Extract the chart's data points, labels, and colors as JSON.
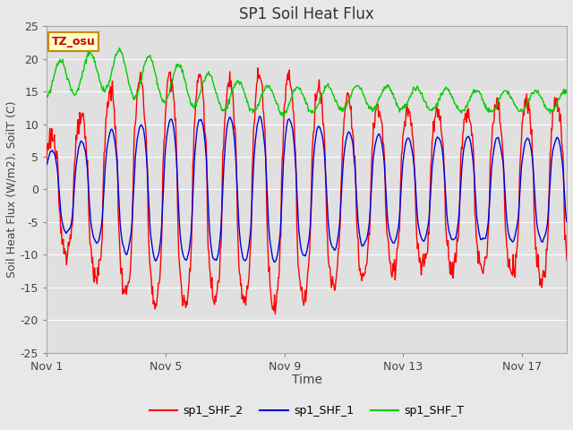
{
  "title": "SP1 Soil Heat Flux",
  "ylabel": "Soil Heat Flux (W/m2), SoilT (C)",
  "xlabel": "Time",
  "ylim": [
    -25,
    25
  ],
  "xlim": [
    0,
    17.5
  ],
  "xtick_positions": [
    0,
    4,
    8,
    12,
    16
  ],
  "xtick_labels": [
    "Nov 1",
    "Nov 5",
    "Nov 9",
    "Nov 13",
    "Nov 17"
  ],
  "ytick_positions": [
    -25,
    -20,
    -15,
    -10,
    -5,
    0,
    5,
    10,
    15,
    20,
    25
  ],
  "fig_bg_color": "#e8e8e8",
  "plot_bg_color": "#e0e0e0",
  "grid_color": "#ffffff",
  "line_red": "#ff0000",
  "line_blue": "#0000dd",
  "line_green": "#00cc00",
  "legend_labels": [
    "sp1_SHF_2",
    "sp1_SHF_1",
    "sp1_SHF_T"
  ],
  "tz_label": "TZ_osu",
  "tz_bg": "#ffffcc",
  "tz_border": "#cc8800",
  "tz_text_color": "#cc0000"
}
